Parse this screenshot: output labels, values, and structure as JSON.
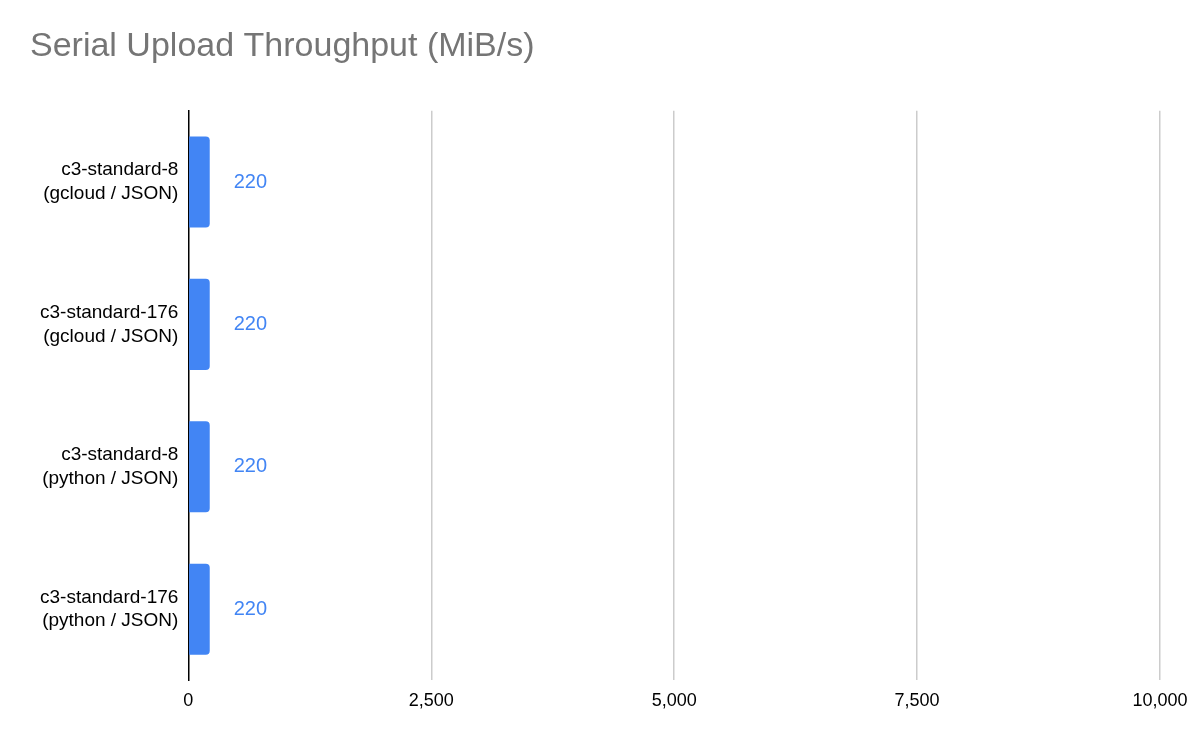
{
  "chart_data": {
    "type": "bar",
    "orientation": "horizontal",
    "title": "Serial Upload Throughput (MiB/s)",
    "categories": [
      [
        "c3-standard-8",
        "(gcloud / JSON)"
      ],
      [
        "c3-standard-176",
        "(gcloud / JSON)"
      ],
      [
        "c3-standard-8",
        "(python / JSON)"
      ],
      [
        "c3-standard-176",
        "(python / JSON)"
      ]
    ],
    "values": [
      220,
      220,
      220,
      220
    ],
    "color": "#4285f4",
    "xlim": [
      0,
      10000
    ],
    "xticks": [
      0,
      {
        "value": 2500,
        "label": "2,500"
      },
      {
        "value": 5000,
        "label": "5,000"
      },
      {
        "value": 7500,
        "label": "7,500"
      },
      {
        "value": 10000,
        "label": "10,000"
      }
    ],
    "grid": true,
    "data_labels": true
  }
}
